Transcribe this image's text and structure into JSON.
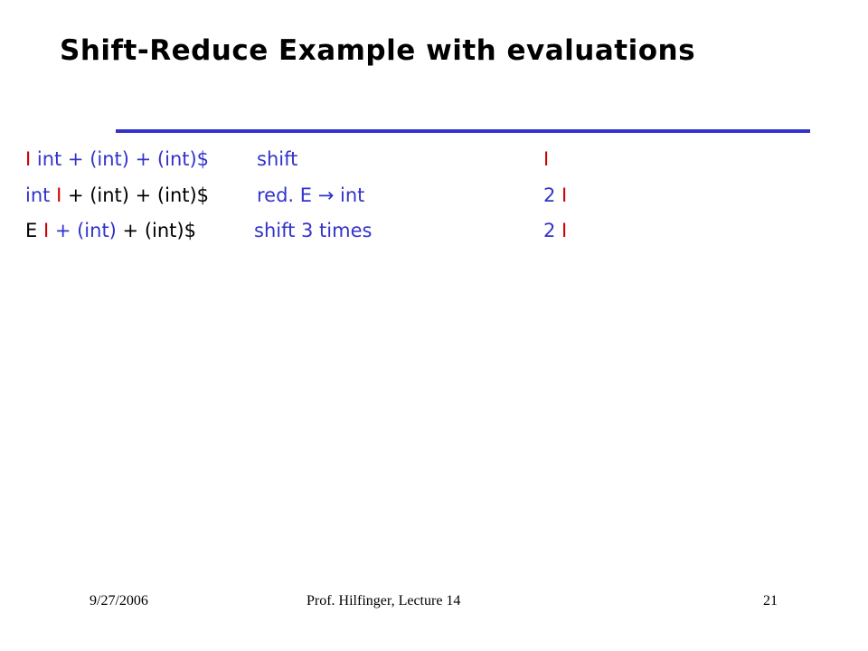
{
  "title": "Shift-Reduce Example with evaluations",
  "colors": {
    "black": "#000000",
    "blue": "#3333cc",
    "red": "#cc0000",
    "rule": "#3333cc"
  },
  "rows": [
    {
      "segments": [
        {
          "text": "I",
          "color": "red"
        },
        {
          "text": " int + (int) + (int)$",
          "color": "blue"
        }
      ],
      "action": "shift",
      "tail": [
        {
          "text": "I",
          "color": "red"
        }
      ]
    },
    {
      "segments": [
        {
          "text": "int ",
          "color": "blue"
        },
        {
          "text": "I",
          "color": "red"
        },
        {
          "text": " + (int) + (int)$",
          "color": "black"
        }
      ],
      "action": "red. E → int",
      "tail": [
        {
          "text": "2 ",
          "color": "blue"
        },
        {
          "text": "I",
          "color": "red"
        }
      ]
    },
    {
      "segments": [
        {
          "text": "E ",
          "color": "black"
        },
        {
          "text": "I",
          "color": "red"
        },
        {
          "text": " + (int)",
          "color": "blue"
        },
        {
          "text": " + (int)$",
          "color": "black"
        }
      ],
      "action": "shift 3 times",
      "tail": [
        {
          "text": "2 ",
          "color": "blue"
        },
        {
          "text": "I",
          "color": "red"
        }
      ]
    }
  ],
  "footer": {
    "date": "9/27/2006",
    "center": "Prof. Hilfinger, Lecture 14",
    "page": "21"
  }
}
